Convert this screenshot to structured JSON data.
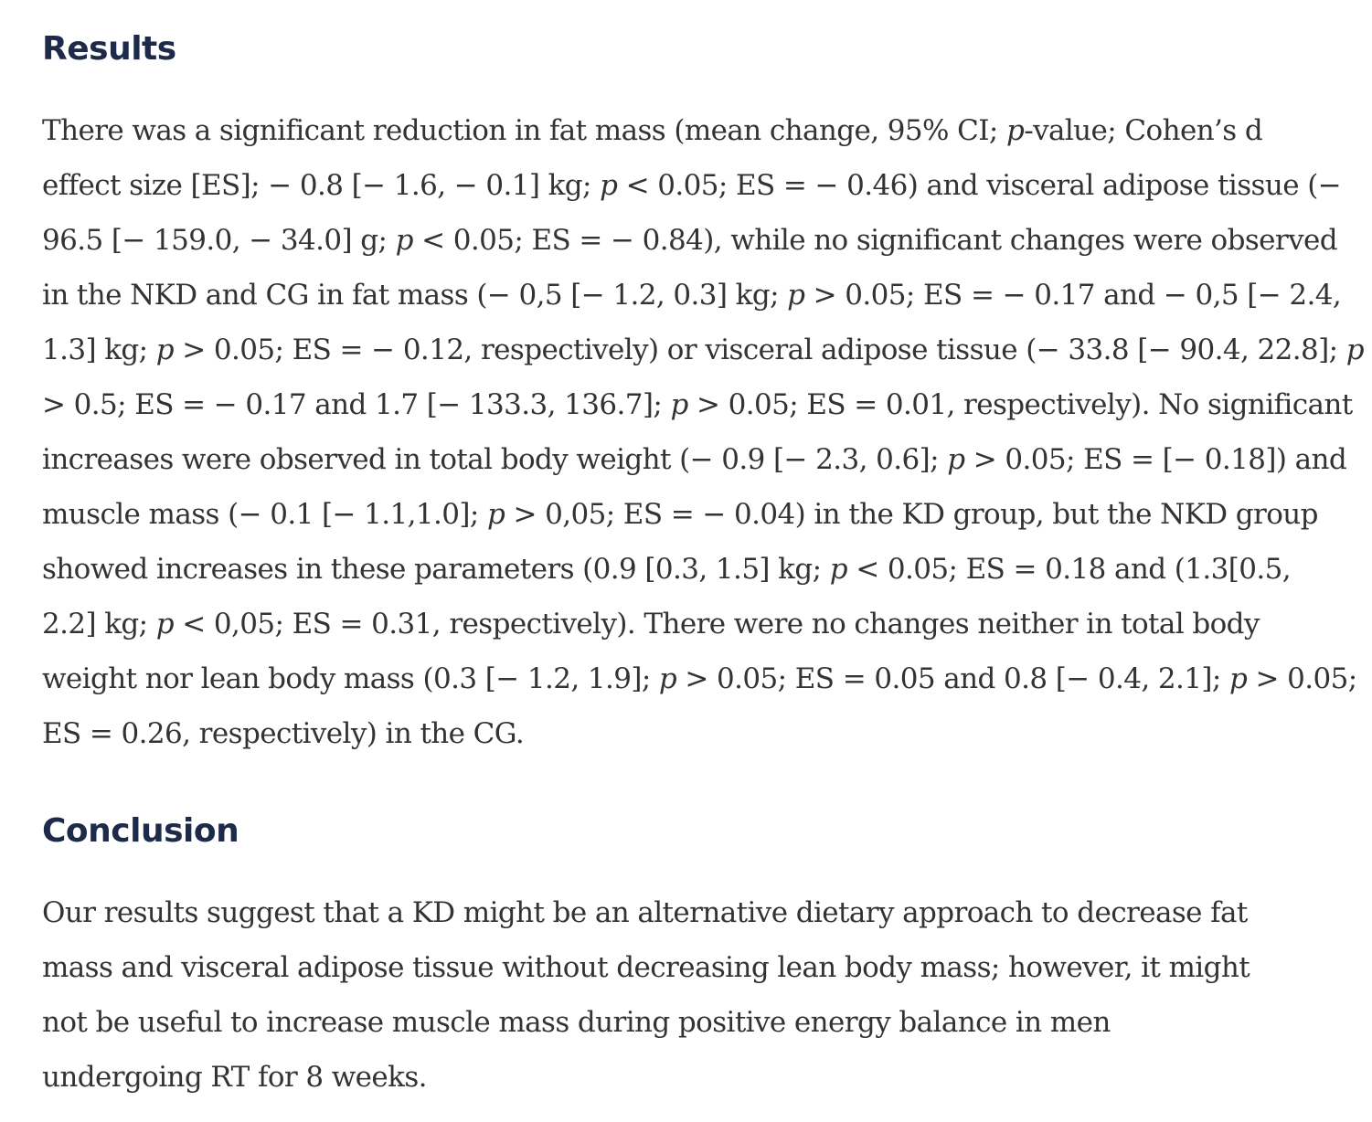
{
  "results": {
    "heading": "Results",
    "lines": [
      "There was a significant reduction in fat mass (mean change, 95% CI; p-value; Cohen’s d",
      "effect size [ES]; − 0.8 [− 1.6, − 0.1] kg; p < 0.05; ES = − 0.46) and visceral adipose tissue (−",
      "96.5 [− 159.0, − 34.0] g; p < 0.05; ES = − 0.84), while no significant changes were observed",
      "in the NKD and CG in fat mass (− 0,5 [− 1.2, 0.3] kg; p > 0.05; ES = − 0.17 and − 0,5 [− 2.4,",
      "1.3] kg; p > 0.05; ES = − 0.12, respectively) or visceral adipose tissue (− 33.8 [− 90.4, 22.8]; p",
      "> 0.5; ES = − 0.17 and 1.7 [− 133.3, 136.7]; p > 0.05; ES = 0.01, respectively). No significant",
      "increases were observed in total body weight (− 0.9 [− 2.3, 0.6]; p > 0.05; ES = [− 0.18]) and",
      "muscle mass (− 0.1 [− 1.1,1.0]; p > 0,05; ES = − 0.04) in the KD group, but the NKD group",
      "showed increases in these parameters (0.9 [0.3, 1.5] kg; p < 0.05; ES = 0.18 and (1.3[0.5,",
      "2.2] kg; p < 0,05; ES = 0.31, respectively). There were no changes neither in total body",
      "weight nor lean body mass (0.3 [− 1.2, 1.9]; p > 0.05; ES = 0.05 and 0.8 [− 0.4, 2.1]; p > 0.05;",
      "ES = 0.26, respectively) in the CG."
    ]
  },
  "conclusion": {
    "heading": "Conclusion",
    "lines": [
      "Our results suggest that a KD might be an alternative dietary approach to decrease fat",
      "mass and visceral adipose tissue without decreasing lean body mass; however, it might",
      "not be useful to increase muscle mass during positive energy balance in men",
      "undergoing RT for 8 weeks."
    ]
  }
}
